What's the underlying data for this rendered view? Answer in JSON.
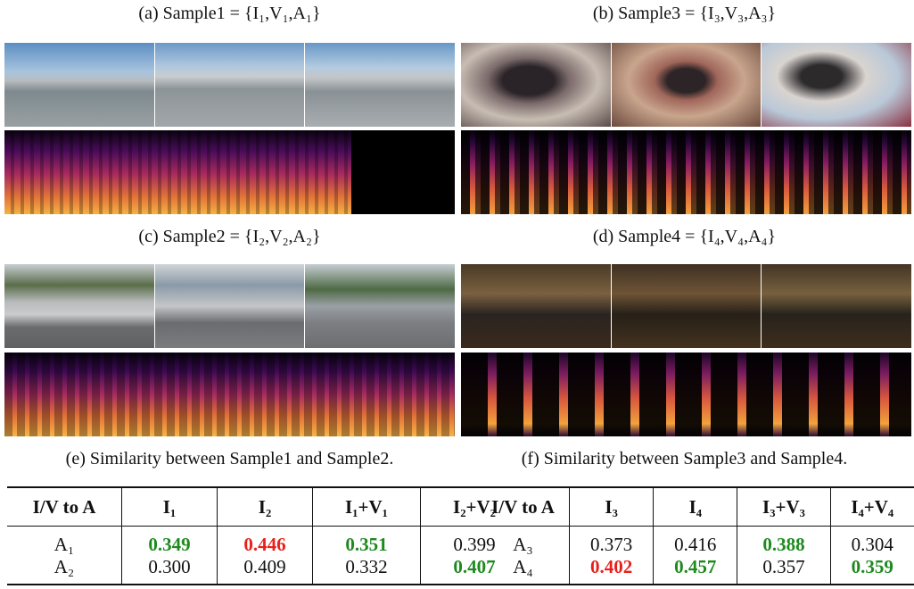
{
  "panels": [
    {
      "caption": "(a) Sample1 = {I₁,V₁,A₁}"
    },
    {
      "caption": "(b) Sample3 = {I₃,V₃,A₃}"
    },
    {
      "caption": "(c) Sample2 = {I₂,V₂,A₂}"
    },
    {
      "caption": "(d) Sample4 = {I₄,V₄,A₄}"
    }
  ],
  "tables": [
    {
      "caption": "(e) Similarity between Sample1 and Sample2.",
      "header": [
        "I/V to A",
        "I₁",
        "I₂",
        "I₁+V₁",
        "I₂+V₂"
      ],
      "rows": [
        [
          {
            "text": "A₁"
          },
          {
            "text": "0.349",
            "color": "#1e8a1e"
          },
          {
            "text": "0.446",
            "color": "#e8201c"
          },
          {
            "text": "0.351",
            "color": "#1e8a1e"
          },
          {
            "text": "0.399"
          }
        ],
        [
          {
            "text": "A₂"
          },
          {
            "text": "0.300"
          },
          {
            "text": "0.409"
          },
          {
            "text": "0.332"
          },
          {
            "text": "0.407",
            "color": "#1e8a1e"
          }
        ]
      ]
    },
    {
      "caption": "(f) Similarity between Sample3 and Sample4.",
      "header": [
        "I/V to A",
        "I₃",
        "I₄",
        "I₃+V₃",
        "I₄+V₄"
      ],
      "rows": [
        [
          {
            "text": "A₃"
          },
          {
            "text": "0.373"
          },
          {
            "text": "0.416"
          },
          {
            "text": "0.388",
            "color": "#1e8a1e"
          },
          {
            "text": "0.304"
          }
        ],
        [
          {
            "text": "A₄"
          },
          {
            "text": "0.402",
            "color": "#e8201c"
          },
          {
            "text": "0.457",
            "color": "#1e8a1e"
          },
          {
            "text": "0.357"
          },
          {
            "text": "0.359",
            "color": "#1e8a1e"
          }
        ]
      ]
    }
  ]
}
